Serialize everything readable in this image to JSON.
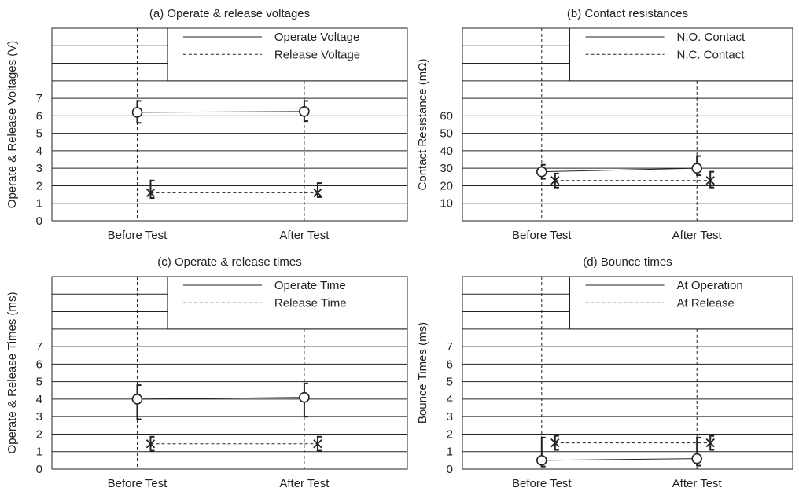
{
  "chart_data": [
    {
      "type": "line",
      "title": "(a) Operate & release voltages",
      "ylabel": "Operate & Release Voltages (V)",
      "xlabel": "",
      "categories": [
        "Before Test",
        "After Test"
      ],
      "ylim": [
        0,
        7
      ],
      "yticks": [
        0,
        1,
        2,
        3,
        4,
        5,
        6,
        7
      ],
      "extra_grid_rows": 3,
      "grid": true,
      "legend_position": "top-right",
      "series": [
        {
          "name": "Operate Voltage",
          "style": "solid",
          "marker": "circle",
          "x_offset": 0,
          "values": [
            6.2,
            6.25
          ],
          "err_high": [
            6.85,
            6.85
          ],
          "err_low": [
            5.6,
            5.7
          ]
        },
        {
          "name": "Release Voltage",
          "style": "dashed",
          "marker": "x",
          "x_offset": 1,
          "values": [
            1.6,
            1.6
          ],
          "err_high": [
            2.3,
            2.15
          ],
          "err_low": [
            1.3,
            1.35
          ]
        }
      ]
    },
    {
      "type": "line",
      "title": "(b) Contact resistances",
      "ylabel": "Contact Resistance (mΩ)",
      "xlabel": "",
      "categories": [
        "Before Test",
        "After Test"
      ],
      "ylim": [
        0,
        70
      ],
      "yticks": [
        10,
        20,
        30,
        40,
        50,
        60
      ],
      "extra_grid_rows": 3,
      "grid": true,
      "legend_position": "top-right",
      "series": [
        {
          "name": "N.O. Contact",
          "style": "solid",
          "marker": "circle",
          "x_offset": 0,
          "values": [
            28,
            30
          ],
          "err_high": [
            32,
            37
          ],
          "err_low": [
            24,
            26
          ]
        },
        {
          "name": "N.C. Contact",
          "style": "dashed",
          "marker": "x",
          "x_offset": 1,
          "values": [
            23,
            23
          ],
          "err_high": [
            27,
            28
          ],
          "err_low": [
            19,
            19
          ]
        }
      ]
    },
    {
      "type": "line",
      "title": "(c) Operate & release times",
      "ylabel": "Operate & Release Times (ms)",
      "xlabel": "",
      "categories": [
        "Before Test",
        "After Test"
      ],
      "ylim": [
        0,
        7
      ],
      "yticks": [
        0,
        1,
        2,
        3,
        4,
        5,
        6,
        7
      ],
      "extra_grid_rows": 3,
      "grid": true,
      "legend_position": "top-right",
      "series": [
        {
          "name": "Operate Time",
          "style": "solid",
          "marker": "circle",
          "x_offset": 0,
          "values": [
            4.0,
            4.1
          ],
          "err_high": [
            4.8,
            4.9
          ],
          "err_low": [
            2.85,
            3.0
          ]
        },
        {
          "name": "Release Time",
          "style": "dashed",
          "marker": "x",
          "x_offset": 1,
          "values": [
            1.45,
            1.45
          ],
          "err_high": [
            1.85,
            1.85
          ],
          "err_low": [
            1.05,
            1.05
          ]
        }
      ]
    },
    {
      "type": "line",
      "title": "(d) Bounce times",
      "ylabel": "Bounce Times (ms)",
      "xlabel": "",
      "categories": [
        "Before Test",
        "After Test"
      ],
      "ylim": [
        0,
        7
      ],
      "yticks": [
        0,
        1,
        2,
        3,
        4,
        5,
        6,
        7
      ],
      "extra_grid_rows": 3,
      "grid": true,
      "legend_position": "top-right",
      "series": [
        {
          "name": "At Operation",
          "style": "solid",
          "marker": "circle",
          "x_offset": 0,
          "values": [
            0.5,
            0.6
          ],
          "err_high": [
            1.8,
            1.8
          ],
          "err_low": [
            0.15,
            0.2
          ]
        },
        {
          "name": "At Release",
          "style": "dashed",
          "marker": "x",
          "x_offset": 1,
          "values": [
            1.5,
            1.5
          ],
          "err_high": [
            1.9,
            1.9
          ],
          "err_low": [
            1.1,
            1.1
          ]
        }
      ]
    }
  ]
}
